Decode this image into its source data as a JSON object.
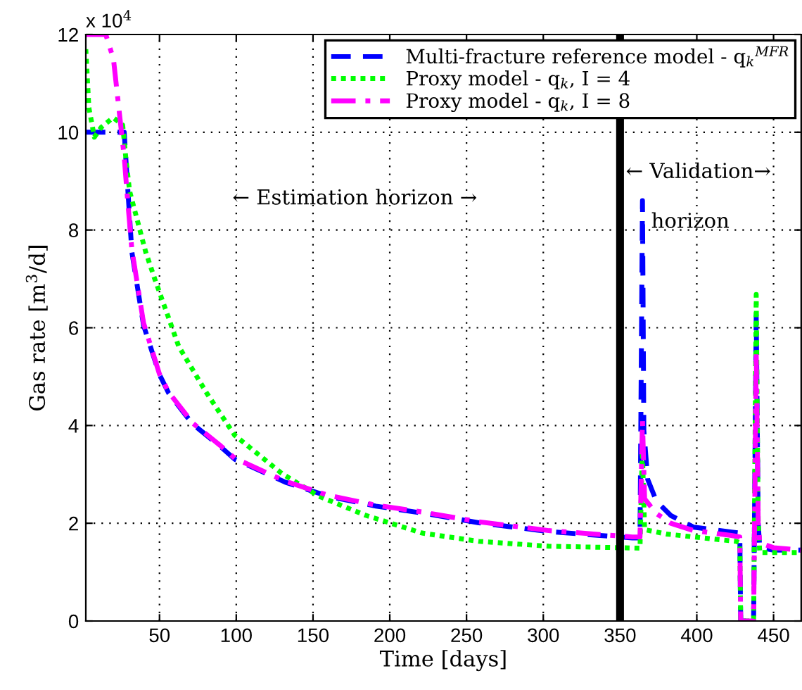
{
  "chart_data": {
    "type": "line",
    "xlabel": "Time [days]",
    "ylabel": "Gas rate [m$^{3}$/d]",
    "annotations": [
      "x 10$^{4}$",
      "← Estimation horizon →",
      "← Validation→",
      "horizon"
    ],
    "xlim": [
      2,
      468
    ],
    "xticks": [
      50,
      100,
      150,
      200,
      250,
      300,
      350,
      400,
      450
    ],
    "ylim": [
      0,
      12
    ],
    "yticks": [
      0,
      2,
      4,
      6,
      8,
      10,
      12
    ],
    "grid": true,
    "legend": "top right",
    "marker": "none",
    "ref_lines": [
      {
        "axis": "x",
        "value": 350,
        "color": "#000000",
        "line_style": "solid"
      }
    ],
    "series": [
      {
        "name": "Multi-fracture reference model - q$_{k}$$^{MFR}$",
        "color": "#0000ff",
        "line_style": "dashed",
        "x": [
          2,
          24,
          27,
          29,
          32,
          39.6,
          50,
          56,
          71.6,
          90,
          99,
          132,
          160,
          191,
          221,
          258,
          303.5,
          337,
          358,
          363,
          364.6,
          365.5,
          368,
          373.7,
          383,
          398,
          422.5,
          428,
          428.6,
          437,
          438.7,
          440,
          441,
          450,
          468
        ],
        "values": [
          10,
          10,
          10,
          9,
          7.55,
          6.05,
          5.04,
          4.66,
          4.03,
          3.56,
          3.31,
          2.84,
          2.55,
          2.35,
          2.21,
          2.01,
          1.83,
          1.75,
          1.7,
          1.7,
          8.6,
          3.9,
          2.9,
          2.45,
          2.16,
          1.92,
          1.82,
          1.8,
          0,
          0,
          6.25,
          2.0,
          1.5,
          1.45,
          1.45
        ]
      },
      {
        "name": "Proxy model - q$_{k}$, I = 4",
        "color": "#00ff00",
        "line_style": "dotted",
        "x": [
          2,
          4,
          7.6,
          12,
          19.8,
          26,
          28,
          30.5,
          41,
          47,
          62.5,
          80.8,
          99,
          129.6,
          154,
          184.5,
          221,
          258,
          303.5,
          350,
          363,
          364.5,
          366,
          380,
          410,
          425.5,
          428,
          428.6,
          437,
          438.7,
          440,
          441,
          468
        ],
        "values": [
          11.7,
          10.5,
          9.9,
          10.1,
          10.3,
          10.15,
          9.5,
          8.8,
          7.55,
          6.99,
          5.62,
          4.66,
          3.8,
          3.02,
          2.55,
          2.16,
          1.8,
          1.63,
          1.53,
          1.5,
          1.49,
          3.5,
          1.87,
          1.78,
          1.68,
          1.63,
          1.6,
          0,
          0,
          6.68,
          2.0,
          1.4,
          1.4
        ]
      },
      {
        "name": "Proxy model - q$_{k}$, I = 8",
        "color": "#ff00ff",
        "line_style": "dashdot",
        "x": [
          2,
          15,
          20,
          24.4,
          27,
          29,
          32,
          39.6,
          50,
          56,
          71.6,
          90,
          99,
          132,
          160,
          191,
          221,
          258,
          303.5,
          337,
          358,
          363,
          364.6,
          366,
          373.7,
          383,
          398,
          422.5,
          428,
          428.6,
          437,
          438.7,
          440,
          441,
          450,
          468
        ],
        "values": [
          12,
          12,
          11.5,
          10.24,
          9.5,
          8.7,
          7.6,
          6.1,
          5.05,
          4.68,
          4.05,
          3.58,
          3.33,
          2.86,
          2.57,
          2.37,
          2.23,
          2.03,
          1.85,
          1.77,
          1.72,
          1.72,
          4.1,
          2.5,
          2.2,
          2.0,
          1.85,
          1.75,
          1.72,
          0,
          0,
          5.5,
          2.0,
          1.6,
          1.5,
          1.45
        ]
      }
    ]
  }
}
